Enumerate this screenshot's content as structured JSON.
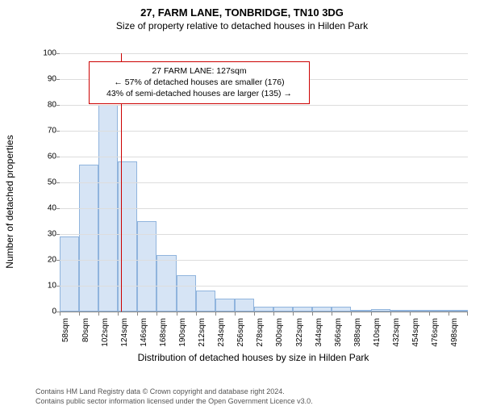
{
  "title_main": "27, FARM LANE, TONBRIDGE, TN10 3DG",
  "title_sub": "Size of property relative to detached houses in Hilden Park",
  "chart": {
    "type": "histogram",
    "ylabel": "Number of detached properties",
    "xlabel": "Distribution of detached houses by size in Hilden Park",
    "ylim": [
      0,
      100
    ],
    "ytick_step": 10,
    "x_tick_labels": [
      "58sqm",
      "80sqm",
      "102sqm",
      "124sqm",
      "146sqm",
      "168sqm",
      "190sqm",
      "212sqm",
      "234sqm",
      "256sqm",
      "278sqm",
      "300sqm",
      "322sqm",
      "344sqm",
      "366sqm",
      "388sqm",
      "410sqm",
      "432sqm",
      "454sqm",
      "476sqm",
      "498sqm"
    ],
    "values": [
      29,
      57,
      80,
      58,
      35,
      22,
      14,
      8,
      5,
      5,
      2,
      2,
      2,
      2,
      2,
      0,
      1,
      0,
      0,
      0,
      0
    ],
    "bar_fill": "#d6e4f5",
    "bar_stroke": "#90b4dd",
    "grid_color": "#dddddd",
    "axis_color": "#888888",
    "background": "#ffffff",
    "marker_value": 127,
    "x_start": 58,
    "x_step": 22,
    "marker_color": "#cc0000",
    "label_fontsize": 12,
    "tick_fontsize": 10
  },
  "annotation": {
    "lines": [
      "27 FARM LANE: 127sqm",
      "← 57% of detached houses are smaller (176)",
      "43% of semi-detached houses are larger (135) →"
    ],
    "border_color": "#cc0000",
    "background": "#ffffff"
  },
  "footer": {
    "line1": "Contains HM Land Registry data © Crown copyright and database right 2024.",
    "line2": "Contains public sector information licensed under the Open Government Licence v3.0."
  }
}
